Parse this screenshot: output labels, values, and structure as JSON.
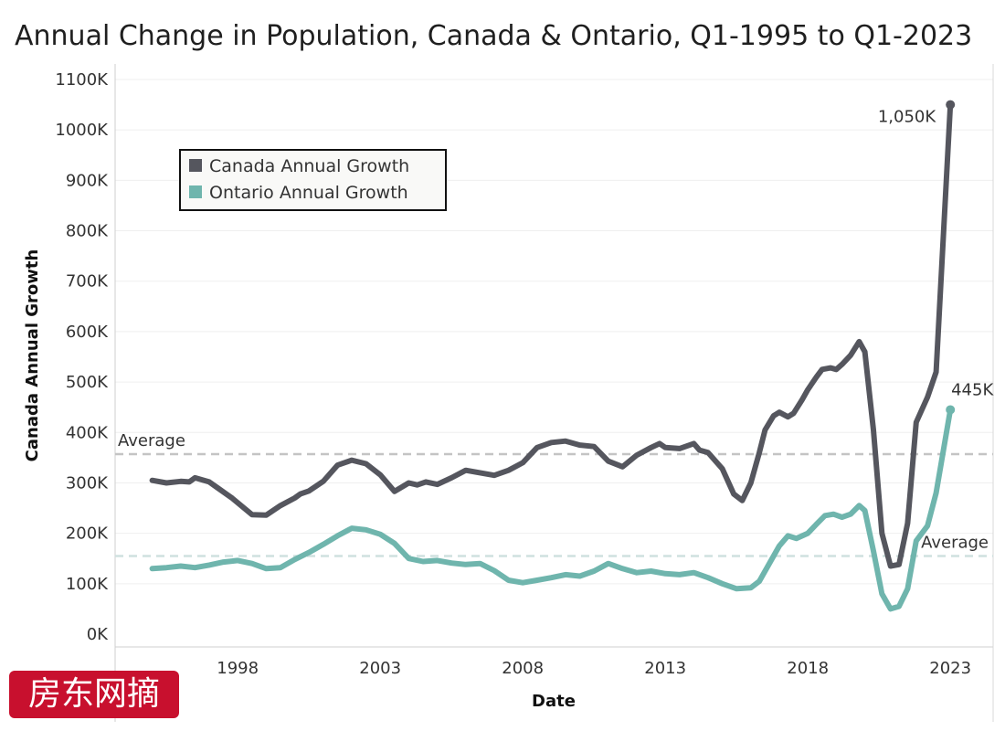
{
  "title": "Annual Change in Population, Canada & Ontario, Q1-1995 to Q1-2023",
  "watermark_text": "房东网摘",
  "chart_data": {
    "type": "line",
    "xlabel": "Date",
    "ylabel": "Canada Annual Growth",
    "ylim": [
      0,
      1100000
    ],
    "xlim": [
      1993.7,
      2024.5
    ],
    "y_ticks": [
      {
        "value": 0,
        "label": "0K"
      },
      {
        "value": 100000,
        "label": "100K"
      },
      {
        "value": 200000,
        "label": "200K"
      },
      {
        "value": 300000,
        "label": "300K"
      },
      {
        "value": 400000,
        "label": "400K"
      },
      {
        "value": 500000,
        "label": "500K"
      },
      {
        "value": 600000,
        "label": "600K"
      },
      {
        "value": 700000,
        "label": "700K"
      },
      {
        "value": 800000,
        "label": "800K"
      },
      {
        "value": 900000,
        "label": "900K"
      },
      {
        "value": 1000000,
        "label": "1000K"
      },
      {
        "value": 1100000,
        "label": "1100K"
      }
    ],
    "x_ticks": [
      {
        "value": 1998,
        "label": "1998"
      },
      {
        "value": 2003,
        "label": "2003"
      },
      {
        "value": 2008,
        "label": "2008"
      },
      {
        "value": 2013,
        "label": "2013"
      },
      {
        "value": 2018,
        "label": "2018"
      },
      {
        "value": 2023,
        "label": "2023"
      }
    ],
    "grid": true,
    "legend_position": "top-left",
    "series": [
      {
        "name": "Canada Annual Growth",
        "color": "#55565e",
        "x": [
          1995.0,
          1995.5,
          1996.0,
          1996.3,
          1996.5,
          1997.0,
          1997.3,
          1997.8,
          1998.5,
          1999.0,
          1999.5,
          2000.0,
          2000.2,
          2000.5,
          2001.0,
          2001.5,
          2002.0,
          2002.5,
          2002.8,
          2003.0,
          2003.5,
          2004.0,
          2004.3,
          2004.6,
          2005.0,
          2005.5,
          2006.0,
          2006.5,
          2007.0,
          2007.5,
          2008.0,
          2008.5,
          2009.0,
          2009.5,
          2010.0,
          2010.5,
          2011.0,
          2011.5,
          2012.0,
          2012.5,
          2012.8,
          2013.0,
          2013.5,
          2014.0,
          2014.2,
          2014.5,
          2015.0,
          2015.4,
          2015.7,
          2016.0,
          2016.3,
          2016.5,
          2016.8,
          2017.0,
          2017.3,
          2017.5,
          2017.8,
          2018.0,
          2018.3,
          2018.5,
          2018.8,
          2019.0,
          2019.2,
          2019.5,
          2019.8,
          2020.0,
          2020.3,
          2020.6,
          2020.9,
          2021.2,
          2021.5,
          2021.8,
          2022.2,
          2022.5,
          2023.0
        ],
        "values": [
          305000,
          300000,
          303000,
          302000,
          310000,
          302000,
          290000,
          270000,
          237000,
          236000,
          255000,
          270000,
          278000,
          284000,
          303000,
          335000,
          345000,
          338000,
          325000,
          316000,
          283000,
          300000,
          296000,
          302000,
          297000,
          310000,
          325000,
          320000,
          315000,
          325000,
          340000,
          370000,
          380000,
          383000,
          375000,
          372000,
          343000,
          332000,
          355000,
          370000,
          378000,
          370000,
          368000,
          378000,
          365000,
          360000,
          328000,
          278000,
          265000,
          300000,
          360000,
          405000,
          433000,
          440000,
          431000,
          438000,
          465000,
          485000,
          510000,
          525000,
          528000,
          525000,
          535000,
          553000,
          580000,
          560000,
          405000,
          200000,
          135000,
          138000,
          220000,
          420000,
          470000,
          520000,
          1050000
        ]
      },
      {
        "name": "Ontario Annual Growth",
        "color": "#6fb5ad",
        "x": [
          1995.0,
          1995.5,
          1996.0,
          1996.5,
          1997.0,
          1997.5,
          1998.0,
          1998.5,
          1999.0,
          1999.5,
          2000.0,
          2000.5,
          2001.0,
          2001.5,
          2002.0,
          2002.5,
          2003.0,
          2003.5,
          2004.0,
          2004.5,
          2005.0,
          2005.5,
          2006.0,
          2006.5,
          2007.0,
          2007.5,
          2008.0,
          2008.5,
          2009.0,
          2009.5,
          2010.0,
          2010.5,
          2011.0,
          2011.5,
          2012.0,
          2012.5,
          2013.0,
          2013.5,
          2014.0,
          2014.5,
          2015.0,
          2015.5,
          2016.0,
          2016.3,
          2016.7,
          2017.0,
          2017.3,
          2017.6,
          2018.0,
          2018.3,
          2018.6,
          2018.9,
          2019.2,
          2019.5,
          2019.8,
          2020.0,
          2020.3,
          2020.6,
          2020.9,
          2021.2,
          2021.5,
          2021.8,
          2022.2,
          2022.5,
          2023.0
        ],
        "values": [
          130000,
          132000,
          135000,
          132000,
          137000,
          143000,
          146000,
          140000,
          130000,
          132000,
          148000,
          162000,
          178000,
          195000,
          210000,
          207000,
          198000,
          180000,
          150000,
          144000,
          146000,
          141000,
          138000,
          140000,
          126000,
          107000,
          102000,
          107000,
          112000,
          118000,
          115000,
          125000,
          140000,
          130000,
          122000,
          125000,
          120000,
          118000,
          122000,
          112000,
          100000,
          90000,
          92000,
          105000,
          145000,
          175000,
          195000,
          190000,
          200000,
          218000,
          235000,
          238000,
          232000,
          238000,
          255000,
          245000,
          165000,
          80000,
          50000,
          55000,
          90000,
          185000,
          215000,
          280000,
          445000
        ]
      }
    ],
    "reference_lines": [
      {
        "series": "Canada Annual Growth",
        "label": "Average",
        "value": 357000,
        "color": "#c4c4c4"
      },
      {
        "series": "Ontario Annual Growth",
        "label": "Average",
        "value": 155000,
        "color": "#cfe1df"
      }
    ],
    "annotations": [
      {
        "series": "Canada Annual Growth",
        "text": "1,050K",
        "x": 2023.0,
        "y": 1050000
      },
      {
        "series": "Ontario Annual Growth",
        "text": "445K",
        "x": 2023.0,
        "y": 445000
      }
    ]
  }
}
